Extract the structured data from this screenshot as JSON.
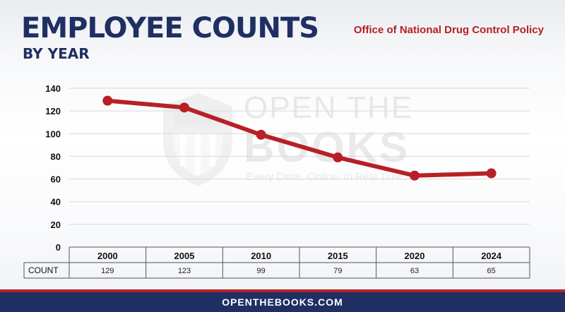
{
  "header": {
    "title": "EMPLOYEE COUNTS",
    "subtitle": "BY YEAR",
    "agency": "Office of National Drug Control Policy"
  },
  "watermark": {
    "line1": "OPEN THE",
    "line2": "BOOKS",
    "tagline": "Every Dime. Online. In Real Time."
  },
  "chart_data": {
    "type": "line",
    "categories": [
      "2000",
      "2005",
      "2010",
      "2015",
      "2020",
      "2024"
    ],
    "series": [
      {
        "values": [
          129,
          123,
          99,
          79,
          63,
          65
        ]
      }
    ],
    "table_row_label": "COUNT",
    "ylim": [
      0,
      140
    ],
    "yticks": [
      0,
      20,
      40,
      60,
      80,
      100,
      120,
      140
    ],
    "grid": true,
    "colors": {
      "line": "#b72025",
      "grid": "#d9d9d9"
    }
  },
  "footer": {
    "text": "OPENTHEBOOKS.COM"
  },
  "colors": {
    "navy": "#1f2f63",
    "red": "#b72025"
  }
}
